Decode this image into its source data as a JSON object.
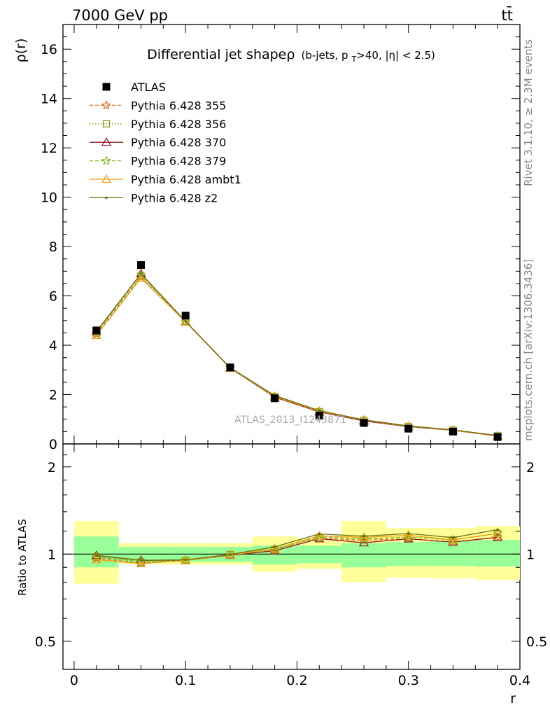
{
  "header": {
    "left": "7000 GeV pp",
    "right": "tt̄"
  },
  "side_labels": {
    "rivet": "Rivet 3.1.10, ≥ 2.3M events",
    "mcplots": "mcplots.cern.ch [arXiv:1306.3436]"
  },
  "watermark": "ATLAS_2013_I1243871",
  "chart_data": {
    "type": "line",
    "title": "Differential jet shapeρ",
    "subtitle": "(b-jets, p_T>40, |η| < 2.5)",
    "xlabel": "r",
    "ylabel": "ρ(r)",
    "ratio_ylabel": "Ratio to ATLAS",
    "xlim": [
      -0.01,
      0.4
    ],
    "ylim": [
      0,
      17
    ],
    "ratio_ylim": [
      0.4,
      2.4
    ],
    "x_ticks": [
      "0",
      "0.1",
      "0.2",
      "0.3",
      "0.4"
    ],
    "y_ticks": [
      "0",
      "2",
      "4",
      "6",
      "8",
      "10",
      "12",
      "14",
      "16"
    ],
    "ratio_y_ticks": [
      "0.5",
      "1",
      "2"
    ],
    "x": [
      0.02,
      0.06,
      0.1,
      0.14,
      0.18,
      0.22,
      0.26,
      0.3,
      0.34,
      0.38
    ],
    "data": {
      "name": "ATLAS",
      "values": [
        4.6,
        7.25,
        5.2,
        3.1,
        1.85,
        1.15,
        0.85,
        0.62,
        0.5,
        0.28
      ],
      "bands": [
        {
          "x0": 0.0,
          "x1": 0.04,
          "stat": [
            0.9,
            1.15
          ],
          "total": [
            0.79,
            1.3
          ]
        },
        {
          "x0": 0.04,
          "x1": 0.08,
          "stat": [
            0.935,
            1.06
          ],
          "total": [
            0.925,
            1.09
          ]
        },
        {
          "x0": 0.08,
          "x1": 0.12,
          "stat": [
            0.94,
            1.06
          ],
          "total": [
            0.92,
            1.09
          ]
        },
        {
          "x0": 0.12,
          "x1": 0.16,
          "stat": [
            0.94,
            1.06
          ],
          "total": [
            0.92,
            1.09
          ]
        },
        {
          "x0": 0.16,
          "x1": 0.2,
          "stat": [
            0.92,
            1.07
          ],
          "total": [
            0.87,
            1.15
          ]
        },
        {
          "x0": 0.2,
          "x1": 0.24,
          "stat": [
            0.93,
            1.07
          ],
          "total": [
            0.89,
            1.13
          ]
        },
        {
          "x0": 0.24,
          "x1": 0.28,
          "stat": [
            0.9,
            1.09
          ],
          "total": [
            0.8,
            1.3
          ]
        },
        {
          "x0": 0.28,
          "x1": 0.32,
          "stat": [
            0.91,
            1.1
          ],
          "total": [
            0.83,
            1.23
          ]
        },
        {
          "x0": 0.32,
          "x1": 0.36,
          "stat": [
            0.91,
            1.11
          ],
          "total": [
            0.825,
            1.23
          ]
        },
        {
          "x0": 0.36,
          "x1": 0.4,
          "stat": [
            0.905,
            1.12
          ],
          "total": [
            0.815,
            1.25
          ]
        }
      ]
    },
    "series": [
      {
        "name": "Pythia 6.428 355",
        "color": "#ee6a20",
        "dash": "5,3",
        "marker": "star",
        "values": [
          4.45,
          6.75,
          4.95,
          3.08,
          1.9,
          1.3,
          0.95,
          0.7,
          0.55,
          0.32
        ]
      },
      {
        "name": "Pythia 6.428 356",
        "color": "#7a9a12",
        "dash": "1.5,2.5",
        "marker": "square",
        "values": [
          4.5,
          6.8,
          4.95,
          3.09,
          1.92,
          1.31,
          0.96,
          0.71,
          0.56,
          0.33
        ]
      },
      {
        "name": "Pythia 6.428 370",
        "color": "#9b1a22",
        "dash": "",
        "marker": "triangle",
        "values": [
          4.55,
          6.9,
          4.95,
          3.07,
          1.9,
          1.3,
          0.93,
          0.7,
          0.55,
          0.32
        ]
      },
      {
        "name": "Pythia 6.428 379",
        "color": "#88c020",
        "dash": "5,3",
        "marker": "star",
        "values": [
          4.5,
          6.85,
          4.96,
          3.08,
          1.92,
          1.32,
          0.96,
          0.71,
          0.56,
          0.33
        ]
      },
      {
        "name": "Pythia 6.428 ambt1",
        "color": "#f0a010",
        "dash": "",
        "marker": "triangle",
        "values": [
          4.4,
          6.72,
          4.94,
          3.08,
          1.93,
          1.33,
          0.97,
          0.72,
          0.56,
          0.33
        ]
      },
      {
        "name": "Pythia 6.428 z2",
        "color": "#667010",
        "dash": "",
        "marker": "dot",
        "values": [
          4.55,
          6.9,
          4.97,
          3.09,
          1.96,
          1.35,
          0.98,
          0.73,
          0.57,
          0.34
        ]
      }
    ]
  }
}
